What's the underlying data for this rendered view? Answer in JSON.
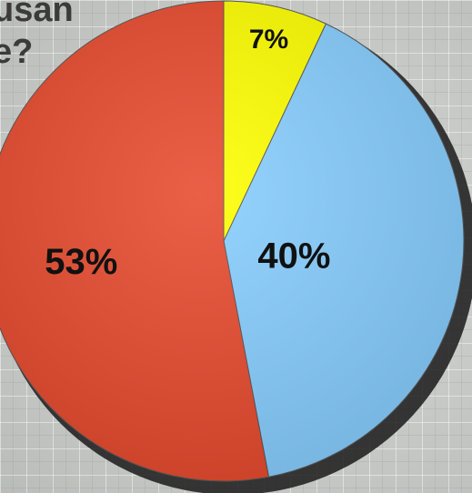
{
  "question_lines": [
    "usan",
    "e?"
  ],
  "chart_data": {
    "type": "pie",
    "slices": [
      {
        "label": "7%",
        "value": 7,
        "color": "#ffff00"
      },
      {
        "label": "40%",
        "value": 40,
        "color": "#87ceff"
      },
      {
        "label": "53%",
        "value": 53,
        "color": "#e64a2e"
      }
    ],
    "start_angle_deg": 0,
    "direction": "clockwise"
  }
}
